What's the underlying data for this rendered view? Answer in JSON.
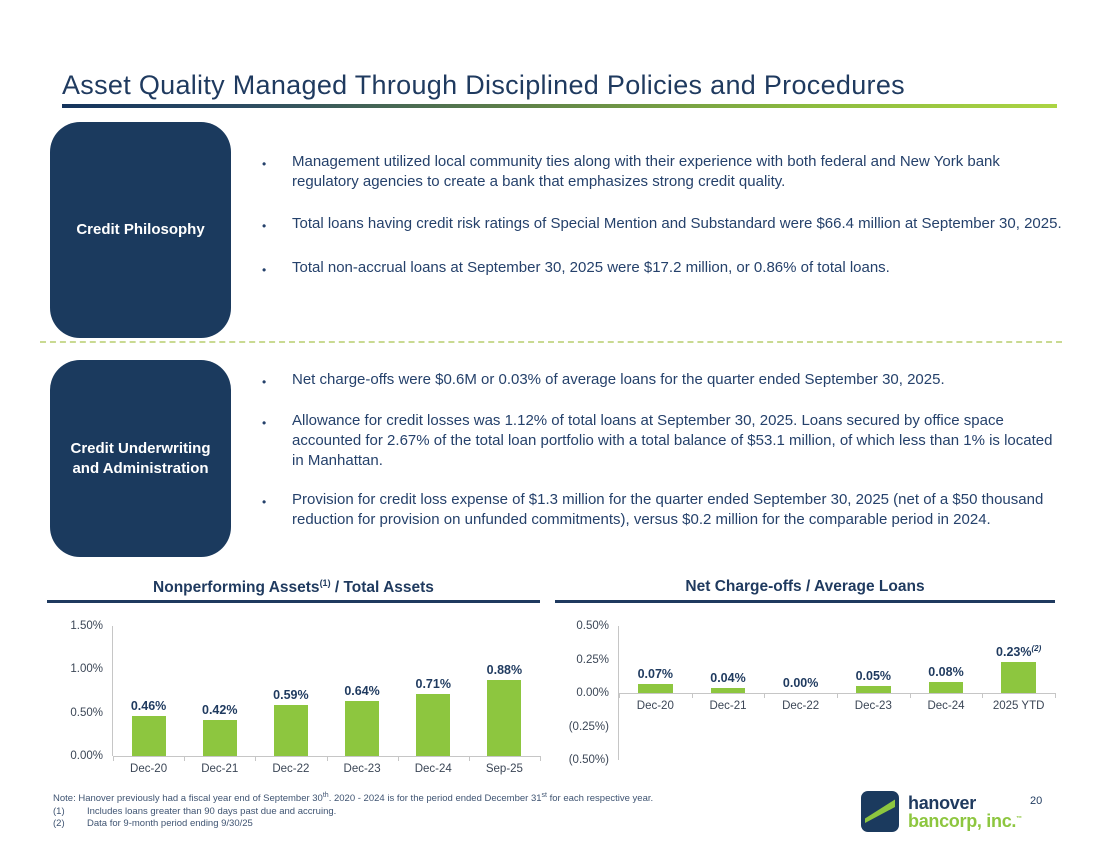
{
  "slide": {
    "title": "Asset Quality Managed Through Disciplined Policies and Procedures",
    "page_number": "20",
    "colors": {
      "navy": "#1b3a5e",
      "green": "#8dc63f",
      "divider_green": "#c9da92",
      "text_navy": "#1f3a5f"
    }
  },
  "sections": [
    {
      "label": "Credit Philosophy",
      "bullets": [
        "Management utilized local community ties along with their experience with both federal and New York bank regulatory agencies to create a bank that emphasizes strong credit quality.",
        "Total loans having credit risk ratings of Special Mention and Substandard were $66.4 million at September 30, 2025.",
        "Total non-accrual loans at September 30, 2025 were $17.2 million, or 0.86% of total loans."
      ]
    },
    {
      "label": "Credit Underwriting and Administration",
      "bullets": [
        "Net charge-offs were $0.6M or 0.03% of average loans for the quarter ended September 30, 2025.",
        "Allowance for credit losses was 1.12% of total loans at September 30, 2025. Loans secured by office space accounted for 2.67% of the total loan portfolio with a total balance of $53.1 million, of which less than 1% is located in Manhattan.",
        "Provision for credit loss expense of $1.3 million for the quarter ended September 30, 2025 (net of a $50 thousand reduction for provision on unfunded commitments), versus $0.2 million for the comparable period in 2024."
      ]
    }
  ],
  "chart_data": [
    {
      "type": "bar",
      "title_parts": [
        {
          "text": "Nonperforming Assets"
        },
        {
          "text": "(1)",
          "sup": true
        },
        {
          "text": " / Total Assets"
        }
      ],
      "title": "Nonperforming Assets(1) / Total Assets",
      "categories": [
        "Dec-20",
        "Dec-21",
        "Dec-22",
        "Dec-23",
        "Dec-24",
        "Sep-25"
      ],
      "values": [
        0.46,
        0.42,
        0.59,
        0.64,
        0.71,
        0.88
      ],
      "labels": [
        "0.46%",
        "0.42%",
        "0.59%",
        "0.64%",
        "0.71%",
        "0.88%"
      ],
      "label_superscripts": [
        "",
        "",
        "",
        "",
        "",
        ""
      ],
      "ylim": [
        0,
        1.5
      ],
      "yticks": [
        1.5,
        1.0,
        0.5,
        0.0
      ],
      "ytick_labels": [
        "1.50%",
        "1.00%",
        "0.50%",
        "0.00%"
      ],
      "bar_color": "#8dc63f",
      "grid": false,
      "legend": null,
      "xlabel": "",
      "ylabel": ""
    },
    {
      "type": "bar",
      "title_parts": [
        {
          "text": "Net Charge-offs / Average Loans"
        }
      ],
      "title": "Net Charge-offs / Average Loans",
      "categories": [
        "Dec-20",
        "Dec-21",
        "Dec-22",
        "Dec-23",
        "Dec-24",
        "2025 YTD"
      ],
      "values": [
        0.07,
        0.04,
        0.0,
        0.05,
        0.08,
        0.23
      ],
      "labels": [
        "0.07%",
        "0.04%",
        "0.00%",
        "0.05%",
        "0.08%",
        "0.23%"
      ],
      "label_superscripts": [
        "",
        "",
        "",
        "",
        "",
        "(2)"
      ],
      "ylim": [
        -0.5,
        0.5
      ],
      "yticks": [
        0.5,
        0.25,
        0.0,
        -0.25,
        -0.5
      ],
      "ytick_labels": [
        "0.50%",
        "0.25%",
        "0.00%",
        "(0.25%)",
        "(0.50%)"
      ],
      "bar_color": "#8dc63f",
      "grid": false,
      "legend": null,
      "xlabel": "",
      "ylabel": ""
    }
  ],
  "footnotes": {
    "note_parts": [
      {
        "text": "Note: Hanover previously had a fiscal year end of September 30"
      },
      {
        "text": "th",
        "sup": true
      },
      {
        "text": ". 2020 - 2024 is for the period ended December 31"
      },
      {
        "text": "st",
        "sup": true
      },
      {
        "text": " for each respective year."
      }
    ],
    "items": [
      {
        "num": "(1)",
        "text": "Includes loans greater than 90 days past due and accruing."
      },
      {
        "num": "(2)",
        "text": "Data for 9-month period ending 9/30/25"
      }
    ]
  },
  "logo": {
    "line1": "hanover",
    "line2": "bancorp, inc.",
    "tm": "™"
  }
}
